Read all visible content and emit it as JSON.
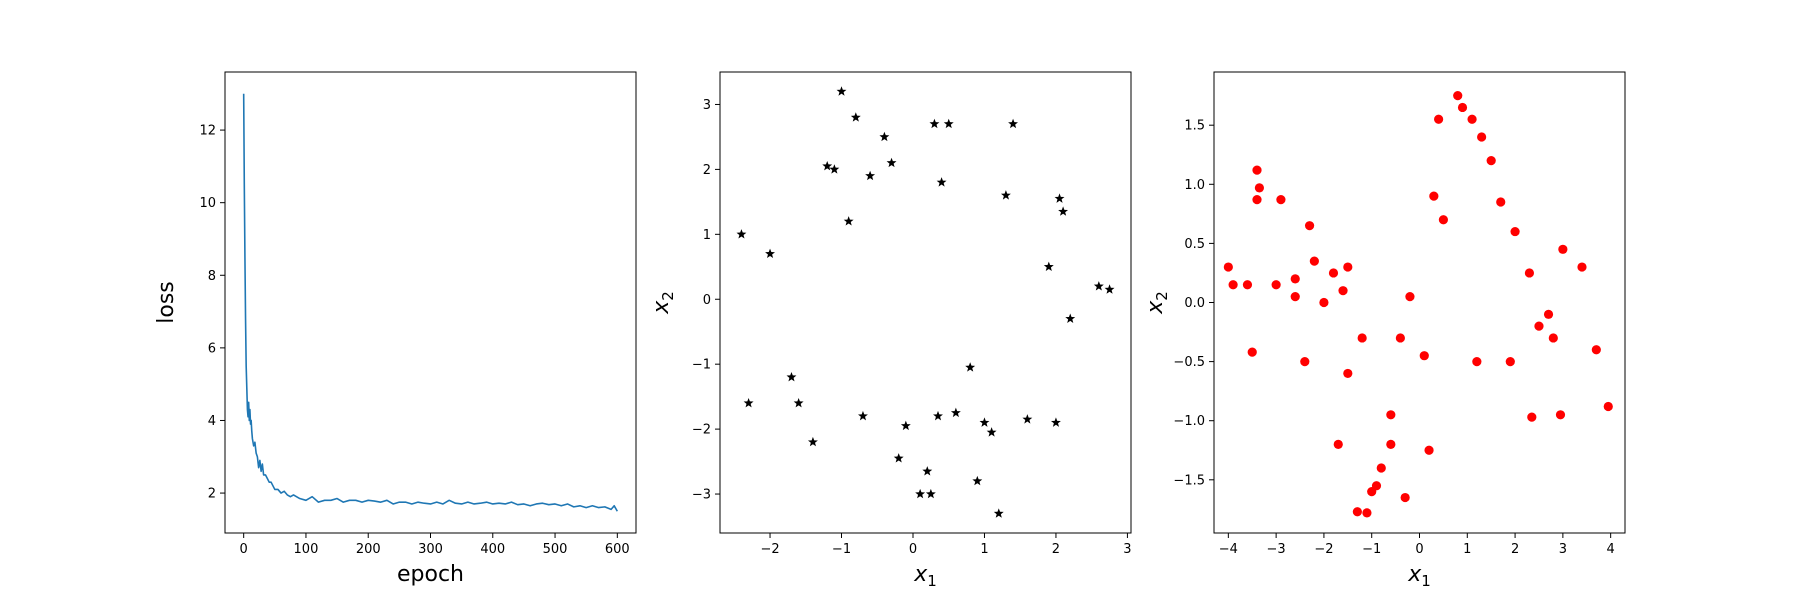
{
  "chart_data": [
    {
      "type": "line",
      "xlabel": "epoch",
      "ylabel": "loss",
      "xlim": [
        -30,
        630
      ],
      "ylim": [
        0.9,
        13.6
      ],
      "xticks": [
        0,
        100,
        200,
        300,
        400,
        500,
        600
      ],
      "yticks": [
        2,
        4,
        6,
        8,
        10,
        12
      ],
      "grid": false,
      "series": [
        {
          "color": "#1f77b4",
          "x": [
            0,
            1,
            2,
            3,
            4,
            5,
            6,
            7,
            8,
            9,
            10,
            11,
            12,
            13,
            14,
            16,
            18,
            20,
            22,
            24,
            26,
            28,
            30,
            32,
            35,
            38,
            41,
            44,
            47,
            50,
            55,
            60,
            65,
            70,
            75,
            80,
            90,
            100,
            110,
            120,
            130,
            140,
            150,
            160,
            170,
            180,
            190,
            200,
            210,
            220,
            230,
            240,
            250,
            260,
            270,
            280,
            290,
            300,
            310,
            320,
            330,
            340,
            350,
            360,
            370,
            380,
            390,
            400,
            410,
            420,
            430,
            440,
            450,
            460,
            470,
            480,
            490,
            500,
            510,
            520,
            530,
            540,
            550,
            560,
            570,
            580,
            590,
            595,
            600
          ],
          "y": [
            13.0,
            10.5,
            8.5,
            6.8,
            5.5,
            4.9,
            4.3,
            4.1,
            4.5,
            4.0,
            4.3,
            3.9,
            4.0,
            3.7,
            3.5,
            3.3,
            3.4,
            3.1,
            3.0,
            2.7,
            2.9,
            2.6,
            2.8,
            2.5,
            2.5,
            2.4,
            2.3,
            2.3,
            2.2,
            2.1,
            2.1,
            2.0,
            2.05,
            1.95,
            1.9,
            1.95,
            1.85,
            1.8,
            1.9,
            1.75,
            1.8,
            1.8,
            1.85,
            1.75,
            1.8,
            1.8,
            1.75,
            1.8,
            1.78,
            1.75,
            1.8,
            1.7,
            1.75,
            1.75,
            1.7,
            1.75,
            1.72,
            1.7,
            1.75,
            1.7,
            1.8,
            1.72,
            1.7,
            1.75,
            1.7,
            1.72,
            1.75,
            1.7,
            1.72,
            1.7,
            1.75,
            1.68,
            1.7,
            1.65,
            1.7,
            1.72,
            1.68,
            1.7,
            1.65,
            1.7,
            1.62,
            1.65,
            1.6,
            1.65,
            1.6,
            1.62,
            1.55,
            1.65,
            1.5
          ]
        }
      ]
    },
    {
      "type": "scatter",
      "xlabel": "x",
      "xlabel_sub": "1",
      "ylabel": "x",
      "ylabel_sub": "2",
      "xlim": [
        -2.7,
        3.05
      ],
      "ylim": [
        -3.6,
        3.5
      ],
      "xticks": [
        -2,
        -1,
        0,
        1,
        2,
        3
      ],
      "yticks": [
        -3,
        -2,
        -1,
        0,
        1,
        2,
        3
      ],
      "marker": "star",
      "color": "#000000",
      "grid": false,
      "series": [
        {
          "x": [
            -2.4,
            -2.0,
            -1.6,
            -1.0,
            -0.8,
            -0.4,
            0.3,
            0.5,
            1.4,
            2.6,
            2.75,
            -2.3,
            -1.2,
            -1.1,
            -0.6,
            0.2,
            0.25,
            0.9,
            1.1,
            1.2,
            1.6,
            2.0,
            2.05,
            2.1,
            2.2,
            -1.7,
            -1.4,
            -0.7,
            0.35,
            0.6,
            1.0,
            1.9,
            -0.3,
            -0.2,
            0.1,
            0.4,
            -0.1,
            0.8,
            -0.9,
            1.3
          ],
          "y": [
            1.0,
            0.7,
            -1.6,
            3.2,
            2.8,
            2.5,
            2.7,
            2.7,
            2.7,
            0.2,
            0.15,
            -1.6,
            2.05,
            2.0,
            1.9,
            -2.65,
            -3.0,
            -2.8,
            -2.05,
            -3.3,
            -1.85,
            -1.9,
            1.55,
            1.35,
            -0.3,
            -1.2,
            -2.2,
            -1.8,
            -1.8,
            -1.75,
            -1.9,
            0.5,
            2.1,
            -2.45,
            -3.0,
            1.8,
            -1.95,
            -1.05,
            1.2,
            1.6
          ]
        }
      ]
    },
    {
      "type": "scatter",
      "xlabel": "x",
      "xlabel_sub": "1",
      "ylabel": "x",
      "ylabel_sub": "2",
      "xlim": [
        -4.3,
        4.3
      ],
      "ylim": [
        -1.95,
        1.95
      ],
      "xticks": [
        -4,
        -3,
        -2,
        -1,
        0,
        1,
        2,
        3,
        4
      ],
      "yticks": [
        -1.5,
        -1.0,
        -0.5,
        0.0,
        0.5,
        1.0,
        1.5
      ],
      "marker": "circle",
      "color": "#ff0000",
      "grid": false,
      "series": [
        {
          "x": [
            -4.0,
            -3.9,
            -3.6,
            -3.4,
            -3.4,
            -3.35,
            -3.0,
            -2.9,
            -2.6,
            -2.3,
            -2.2,
            -2.0,
            -1.8,
            -1.6,
            -1.5,
            -1.3,
            -1.1,
            -1.0,
            -0.9,
            -0.8,
            -0.6,
            -0.3,
            0.2,
            0.4,
            0.8,
            0.9,
            1.1,
            1.3,
            1.5,
            1.7,
            2.0,
            2.3,
            2.5,
            2.7,
            3.0,
            3.4,
            3.7,
            3.95,
            2.35,
            2.95,
            0.3,
            -0.4,
            0.1,
            -0.2,
            -1.2,
            -1.5,
            -2.4,
            -2.6,
            -3.5,
            1.2,
            0.5,
            -0.6,
            -1.7,
            2.8,
            1.9
          ],
          "y": [
            0.3,
            0.15,
            0.15,
            1.12,
            0.87,
            0.97,
            0.15,
            0.87,
            0.05,
            0.65,
            0.35,
            0.0,
            0.25,
            0.1,
            0.3,
            -1.77,
            -1.78,
            -1.6,
            -1.55,
            -1.4,
            -1.2,
            -1.65,
            -1.25,
            1.55,
            1.75,
            1.65,
            1.55,
            1.4,
            1.2,
            0.85,
            0.6,
            0.25,
            -0.2,
            -0.1,
            0.45,
            0.3,
            -0.4,
            -0.88,
            -0.97,
            -0.95,
            0.9,
            -0.3,
            -0.45,
            0.05,
            -0.3,
            -0.6,
            -0.5,
            0.2,
            -0.42,
            -0.5,
            0.7,
            -0.95,
            -1.2,
            -0.3,
            -0.5
          ]
        }
      ]
    }
  ]
}
